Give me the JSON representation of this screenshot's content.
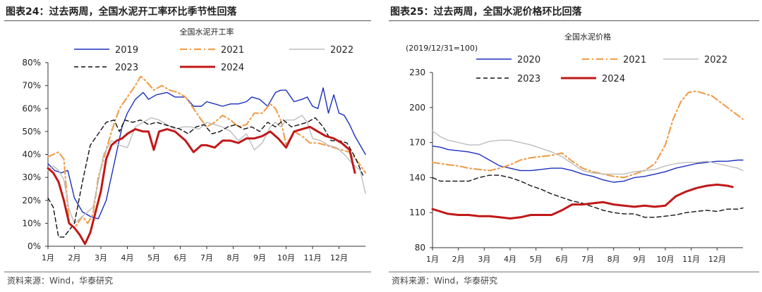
{
  "colors": {
    "2019": "#1a2fbf",
    "2020": "#1a2fbf",
    "2021": "#f0a050",
    "2022": "#bdbdbd",
    "2023": "#111111",
    "2024": "#c01818"
  },
  "chart_data": [
    {
      "type": "line",
      "fig_title": "图表24：过去两周，全国水泥开工率环比季节性回落",
      "title": "全国水泥开工率",
      "ylabel_note": "",
      "ylim": [
        0,
        80
      ],
      "yticks": [
        "0%",
        "10%",
        "20%",
        "30%",
        "40%",
        "50%",
        "60%",
        "70%",
        "80%"
      ],
      "ytick_values": [
        0,
        10,
        20,
        30,
        40,
        50,
        60,
        70,
        80
      ],
      "xlim": [
        1,
        13
      ],
      "xticks": [
        "1月",
        "2月",
        "3月",
        "4月",
        "5月",
        "6月",
        "7月",
        "8月",
        "9月",
        "10月",
        "11月",
        "12月"
      ],
      "source": "资料来源：Wind，华泰研究",
      "series": [
        {
          "name": "2019",
          "style": "solid",
          "color_key": "2019",
          "x": [
            1,
            1.25,
            1.5,
            1.75,
            2.0,
            2.3,
            2.6,
            2.9,
            3.2,
            3.5,
            3.8,
            4.0,
            4.3,
            4.6,
            4.8,
            5.1,
            5.5,
            5.8,
            6.0,
            6.2,
            6.5,
            6.8,
            7.0,
            7.3,
            7.6,
            7.9,
            8.2,
            8.5,
            8.7,
            9.0,
            9.3,
            9.6,
            9.8,
            10.0,
            10.3,
            10.6,
            10.8,
            11.0,
            11.2,
            11.4,
            11.6,
            11.8,
            12.0,
            12.2,
            12.4,
            12.6,
            12.8,
            13.0
          ],
          "y": [
            36,
            33,
            32,
            33,
            21,
            15,
            13,
            12,
            20,
            36,
            52,
            58,
            64,
            67,
            64,
            66,
            67,
            65,
            65,
            65,
            61,
            61,
            63,
            62,
            61,
            62,
            62,
            63,
            65,
            64,
            61,
            67,
            68,
            68,
            63,
            64,
            65,
            61,
            60,
            69,
            58,
            66,
            58,
            57,
            53,
            48,
            44,
            40
          ]
        },
        {
          "name": "2021",
          "style": "dashdot",
          "color_key": "2021",
          "x": [
            1,
            1.2,
            1.4,
            1.6,
            1.8,
            2.0,
            2.3,
            2.5,
            2.7,
            2.9,
            3.1,
            3.4,
            3.7,
            4.0,
            4.3,
            4.5,
            4.7,
            5.0,
            5.3,
            5.6,
            5.9,
            6.2,
            6.5,
            6.8,
            7.0,
            7.3,
            7.6,
            7.9,
            8.2,
            8.5,
            8.8,
            9.1,
            9.4,
            9.6,
            9.8,
            10.0,
            10.3,
            10.6,
            10.9,
            11.2,
            11.5,
            11.8,
            12.1,
            12.4,
            12.7,
            13.0
          ],
          "y": [
            39,
            40,
            41,
            38,
            10,
            8,
            13,
            10,
            14,
            30,
            38,
            50,
            60,
            65,
            70,
            74,
            72,
            68,
            70,
            68,
            67,
            65,
            60,
            55,
            52,
            54,
            57,
            55,
            52,
            53,
            58,
            58,
            62,
            60,
            55,
            44,
            50,
            48,
            45,
            45,
            44,
            43,
            42,
            41,
            37,
            32
          ]
        },
        {
          "name": "2022",
          "style": "solid",
          "color_key": "2022",
          "x": [
            1,
            1.2,
            1.4,
            1.6,
            1.8,
            2.0,
            2.2,
            2.5,
            2.7,
            2.9,
            3.1,
            3.4,
            3.7,
            4.0,
            4.3,
            4.6,
            4.9,
            5.2,
            5.5,
            5.8,
            6.1,
            6.4,
            6.7,
            7.0,
            7.3,
            7.6,
            7.9,
            8.2,
            8.5,
            8.8,
            9.1,
            9.4,
            9.6,
            9.8,
            10.0,
            10.3,
            10.6,
            10.8,
            11.0,
            11.3,
            11.6,
            11.9,
            12.2,
            12.5,
            12.8,
            13.0
          ],
          "y": [
            33,
            35,
            33,
            29,
            16,
            10,
            12,
            15,
            17,
            28,
            40,
            46,
            44,
            43,
            52,
            54,
            56,
            55,
            53,
            51,
            52,
            52,
            51,
            54,
            53,
            52,
            50,
            46,
            49,
            42,
            45,
            52,
            54,
            52,
            55,
            55,
            57,
            54,
            47,
            46,
            44,
            43,
            40,
            36,
            33,
            23
          ]
        },
        {
          "name": "2023",
          "style": "dash",
          "color_key": "2023",
          "x": [
            1,
            1.2,
            1.4,
            1.6,
            1.8,
            2.0,
            2.3,
            2.6,
            2.9,
            3.2,
            3.5,
            3.7,
            3.9,
            4.2,
            4.5,
            4.8,
            5.1,
            5.4,
            5.7,
            6.0,
            6.3,
            6.6,
            6.9,
            7.2,
            7.5,
            7.8,
            8.1,
            8.4,
            8.7,
            9.0,
            9.3,
            9.6,
            9.9,
            10.2,
            10.5,
            10.8,
            11.1,
            11.4,
            11.7,
            12.0,
            12.3,
            12.6,
            12.9
          ],
          "y": [
            21,
            17,
            4,
            4,
            7,
            10,
            28,
            44,
            49,
            54,
            55,
            50,
            55,
            54,
            55,
            53,
            54,
            53,
            52,
            51,
            49,
            52,
            53,
            49,
            50,
            52,
            53,
            51,
            52,
            50,
            54,
            52,
            55,
            52,
            53,
            54,
            56,
            52,
            46,
            46,
            45,
            39,
            31
          ]
        },
        {
          "name": "2024",
          "style": "solid_thick",
          "color_key": "2024",
          "x": [
            1,
            1.2,
            1.4,
            1.6,
            1.8,
            2.0,
            2.2,
            2.4,
            2.6,
            2.8,
            3.0,
            3.2,
            3.4,
            3.6,
            3.8,
            4.0,
            4.3,
            4.6,
            4.8,
            5.0,
            5.2,
            5.5,
            5.8,
            6.0,
            6.2,
            6.5,
            6.8,
            7.0,
            7.3,
            7.6,
            7.9,
            8.2,
            8.5,
            8.8,
            9.1,
            9.4,
            9.7,
            10.0,
            10.3,
            10.6,
            10.9,
            11.2,
            11.5,
            11.8,
            12.1,
            12.4,
            12.6
          ],
          "y": [
            34,
            32,
            28,
            20,
            10,
            8,
            5,
            1,
            6,
            15,
            24,
            38,
            44,
            46,
            47,
            49,
            51,
            50,
            50,
            42,
            50,
            51,
            50,
            48,
            46,
            41,
            44,
            44,
            43,
            46,
            46,
            45,
            47,
            47,
            48,
            50,
            47,
            43,
            50,
            51,
            52,
            50,
            48,
            47,
            45,
            42,
            32
          ]
        }
      ]
    },
    {
      "type": "line",
      "fig_title": "图表25：过去两周，全国水泥价格环比回落",
      "title": "全国水泥价格",
      "ylabel_note": "(2019/12/31=100)",
      "ylim": [
        80,
        230
      ],
      "yticks": [
        "80",
        "110",
        "140",
        "170",
        "200",
        "230"
      ],
      "ytick_values": [
        80,
        110,
        140,
        170,
        200,
        230
      ],
      "xlim": [
        1,
        13
      ],
      "xticks": [
        "1月",
        "2月",
        "3月",
        "4月",
        "5月",
        "6月",
        "7月",
        "8月",
        "9月",
        "10月",
        "11月",
        "12月"
      ],
      "source": "资料来源：Wind，华泰研究",
      "series": [
        {
          "name": "2020",
          "style": "solid",
          "color_key": "2020",
          "x": [
            1,
            1.3,
            1.6,
            2.0,
            2.4,
            2.8,
            3.2,
            3.6,
            4.0,
            4.4,
            4.8,
            5.2,
            5.6,
            6.0,
            6.4,
            6.8,
            7.2,
            7.6,
            8.0,
            8.4,
            8.8,
            9.2,
            9.6,
            10.0,
            10.4,
            10.8,
            11.2,
            11.6,
            12.0,
            12.4,
            12.8,
            13.0
          ],
          "y": [
            167,
            166,
            164,
            163,
            162,
            160,
            155,
            150,
            148,
            146,
            146,
            147,
            148,
            148,
            146,
            143,
            141,
            138,
            136,
            137,
            140,
            141,
            143,
            145,
            148,
            150,
            152,
            153,
            154,
            154,
            155,
            155
          ]
        },
        {
          "name": "2021",
          "style": "dashdot",
          "color_key": "2021",
          "x": [
            1,
            1.3,
            1.6,
            2.0,
            2.4,
            2.8,
            3.2,
            3.6,
            4.0,
            4.4,
            4.8,
            5.2,
            5.6,
            6.0,
            6.4,
            6.8,
            7.2,
            7.6,
            8.0,
            8.4,
            8.8,
            9.2,
            9.6,
            10.0,
            10.3,
            10.6,
            10.9,
            11.2,
            11.5,
            11.8,
            12.1,
            12.4,
            12.7,
            13.0
          ],
          "y": [
            153,
            152,
            151,
            150,
            148,
            147,
            146,
            148,
            151,
            155,
            157,
            158,
            159,
            161,
            154,
            148,
            145,
            143,
            141,
            140,
            143,
            146,
            152,
            168,
            190,
            205,
            213,
            214,
            212,
            210,
            205,
            200,
            195,
            190
          ]
        },
        {
          "name": "2022",
          "style": "solid",
          "color_key": "2022",
          "x": [
            1,
            1.3,
            1.6,
            2.0,
            2.4,
            2.8,
            3.2,
            3.6,
            4.0,
            4.4,
            4.8,
            5.2,
            5.6,
            6.0,
            6.4,
            6.8,
            7.2,
            7.6,
            8.0,
            8.4,
            8.8,
            9.2,
            9.6,
            10.0,
            10.4,
            10.8,
            11.2,
            11.6,
            12.0,
            12.4,
            12.8,
            13.0
          ],
          "y": [
            180,
            175,
            172,
            170,
            168,
            168,
            171,
            172,
            172,
            170,
            168,
            165,
            162,
            158,
            152,
            146,
            144,
            143,
            143,
            143,
            145,
            146,
            147,
            150,
            152,
            153,
            153,
            154,
            152,
            150,
            148,
            146
          ]
        },
        {
          "name": "2023",
          "style": "dash",
          "color_key": "2023",
          "x": [
            1,
            1.3,
            1.6,
            2.0,
            2.4,
            2.8,
            3.2,
            3.6,
            4.0,
            4.4,
            4.8,
            5.2,
            5.6,
            6.0,
            6.4,
            6.8,
            7.2,
            7.6,
            8.0,
            8.4,
            8.8,
            9.2,
            9.6,
            10.0,
            10.4,
            10.8,
            11.2,
            11.6,
            12.0,
            12.4,
            12.8,
            13.0
          ],
          "y": [
            140,
            137,
            137,
            137,
            137,
            140,
            142,
            142,
            140,
            137,
            133,
            130,
            126,
            123,
            120,
            118,
            115,
            112,
            110,
            109,
            109,
            106,
            106,
            107,
            108,
            110,
            111,
            112,
            111,
            113,
            113,
            114
          ]
        },
        {
          "name": "2024",
          "style": "solid_thick",
          "color_key": "2024",
          "x": [
            1,
            1.3,
            1.6,
            2.0,
            2.4,
            2.8,
            3.2,
            3.6,
            4.0,
            4.4,
            4.8,
            5.2,
            5.6,
            6.0,
            6.4,
            6.8,
            7.2,
            7.6,
            8.0,
            8.4,
            8.8,
            9.2,
            9.6,
            10.0,
            10.4,
            10.8,
            11.2,
            11.6,
            12.0,
            12.4,
            12.6
          ],
          "y": [
            113,
            111,
            109,
            108,
            108,
            107,
            107,
            106,
            105,
            106,
            108,
            108,
            108,
            112,
            117,
            117,
            118,
            119,
            117,
            116,
            115,
            116,
            115,
            116,
            124,
            128,
            131,
            133,
            134,
            133,
            132
          ]
        }
      ]
    }
  ]
}
